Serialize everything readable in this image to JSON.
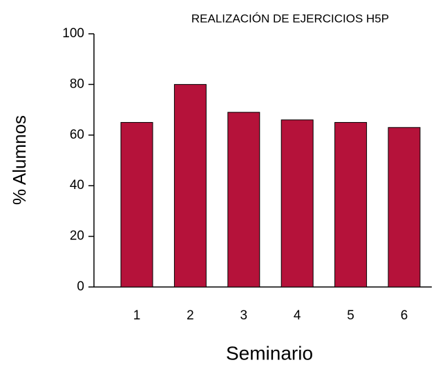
{
  "chart_data": {
    "type": "bar",
    "title": "REALIZACIÓN DE EJERCICIOS H5P",
    "x_label": "Seminario",
    "y_label": "% Alumnos",
    "categories": [
      "1",
      "2",
      "3",
      "4",
      "5",
      "6"
    ],
    "values": [
      65,
      80,
      69,
      66,
      65,
      63
    ],
    "color": "#b5123a",
    "ylim": [
      0,
      100
    ],
    "yticks": [
      0,
      20,
      40,
      60,
      80,
      100
    ],
    "grid": false
  }
}
